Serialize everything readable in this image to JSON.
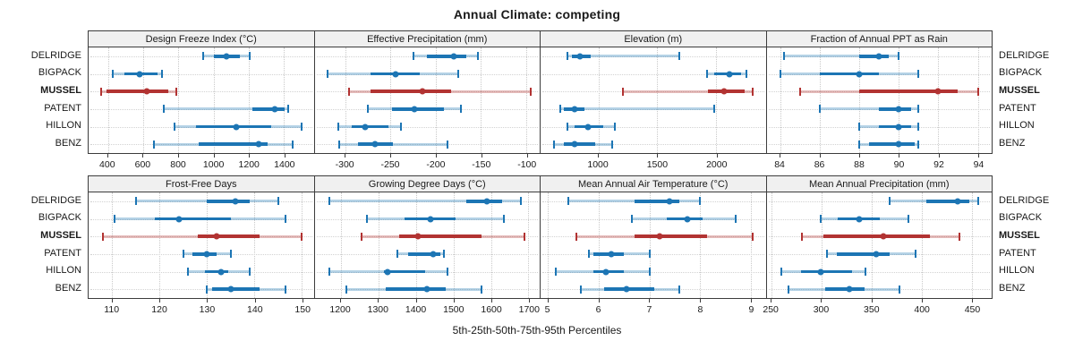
{
  "title": "Annual Climate: competing",
  "caption": "5th-25th-50th-75th-95th Percentiles",
  "sites": [
    "DELRIDGE",
    "BIGPACK",
    "MUSSEL",
    "PATENT",
    "HILLON",
    "BENZ"
  ],
  "highlight_site": "MUSSEL",
  "colors": {
    "series": "#1c75b4",
    "series_light": "rgba(28,117,180,0.33)",
    "highlight": "#b23332",
    "highlight_light": "rgba(178,51,50,0.33)",
    "grid": "#c9c9c9",
    "header_bg": "#f0f0f0",
    "border": "#3c3c3c"
  },
  "chart_data": {
    "type": "dot-whisker percentile trellis",
    "percentiles": [
      "5th",
      "25th",
      "50th",
      "75th",
      "95th"
    ],
    "legend_position": "none",
    "grid": "dotted",
    "panels": [
      {
        "title": "Design Freeze Index (°C)",
        "row": "top",
        "domain": [
          290,
          1570
        ],
        "ticks": [
          400,
          600,
          800,
          1000,
          1200,
          1400
        ],
        "series": [
          {
            "site": "DELRIDGE",
            "values": [
              940,
              1000,
              1075,
              1150,
              1205
            ]
          },
          {
            "site": "BIGPACK",
            "values": [
              425,
              495,
              580,
              680,
              705
            ]
          },
          {
            "site": "MUSSEL",
            "values": [
              360,
              390,
              620,
              745,
              790
            ]
          },
          {
            "site": "PATENT",
            "values": [
              715,
              1220,
              1350,
              1405,
              1425
            ]
          },
          {
            "site": "HILLON",
            "values": [
              780,
              900,
              1130,
              1330,
              1500
            ]
          },
          {
            "site": "BENZ",
            "values": [
              660,
              915,
              1255,
              1310,
              1450
            ]
          }
        ]
      },
      {
        "title": "Effective Precipitation (mm)",
        "row": "top",
        "domain": [
          -334,
          -85
        ],
        "ticks": [
          -300,
          -250,
          -200,
          -150,
          -100
        ],
        "series": [
          {
            "site": "DELRIDGE",
            "values": [
              -225,
              -210,
              -180,
              -166,
              -153
            ]
          },
          {
            "site": "BIGPACK",
            "values": [
              -320,
              -272,
              -244,
              -218,
              -175
            ]
          },
          {
            "site": "MUSSEL",
            "values": [
              -296,
              -272,
              -215,
              -183,
              -95
            ]
          },
          {
            "site": "PATENT",
            "values": [
              -275,
              -248,
              -224,
              -191,
              -172
            ]
          },
          {
            "site": "HILLON",
            "values": [
              -308,
              -293,
              -278,
              -252,
              -238
            ]
          },
          {
            "site": "BENZ",
            "values": [
              -307,
              -286,
              -267,
              -247,
              -187
            ]
          }
        ]
      },
      {
        "title": "Elevation (m)",
        "row": "top",
        "domain": [
          510,
          2420
        ],
        "ticks": [
          1000,
          1500,
          2000
        ],
        "series": [
          {
            "site": "DELRIDGE",
            "values": [
              740,
              775,
              845,
              935,
              1685
            ]
          },
          {
            "site": "BIGPACK",
            "values": [
              1920,
              1985,
              2110,
              2210,
              2260
            ]
          },
          {
            "site": "MUSSEL",
            "values": [
              1205,
              1930,
              2070,
              2245,
              2310
            ]
          },
          {
            "site": "PATENT",
            "values": [
              675,
              710,
              800,
              885,
              1985
            ]
          },
          {
            "site": "HILLON",
            "values": [
              735,
              800,
              910,
              1040,
              1140
            ]
          },
          {
            "site": "BENZ",
            "values": [
              625,
              710,
              800,
              975,
              1115
            ]
          }
        ]
      },
      {
        "title": "Fraction of Annual PPT as Rain",
        "row": "top",
        "domain": [
          83.3,
          94.7
        ],
        "ticks": [
          84,
          86,
          88,
          90,
          92,
          94
        ],
        "series": [
          {
            "site": "DELRIDGE",
            "values": [
              84.2,
              88,
              89,
              89.5,
              90
            ]
          },
          {
            "site": "BIGPACK",
            "values": [
              84,
              86,
              88,
              89,
              91
            ]
          },
          {
            "site": "MUSSEL",
            "values": [
              85,
              88,
              92,
              93,
              94
            ]
          },
          {
            "site": "PATENT",
            "values": [
              86,
              89,
              90,
              90.6,
              91
            ]
          },
          {
            "site": "HILLON",
            "values": [
              88,
              89,
              90,
              90.6,
              91
            ]
          },
          {
            "site": "BENZ",
            "values": [
              88,
              88.5,
              90,
              90.8,
              91
            ]
          }
        ]
      },
      {
        "title": "Frost-Free Days",
        "row": "bottom",
        "domain": [
          105,
          152.5
        ],
        "ticks": [
          110,
          120,
          130,
          140,
          150
        ],
        "series": [
          {
            "site": "DELRIDGE",
            "values": [
              115,
              130,
              136,
              139,
              145
            ]
          },
          {
            "site": "BIGPACK",
            "values": [
              110.5,
              119,
              124,
              135,
              146.5
            ]
          },
          {
            "site": "MUSSEL",
            "values": [
              108,
              128,
              132,
              141,
              150
            ]
          },
          {
            "site": "PATENT",
            "values": [
              125,
              127,
              130,
              132,
              135
            ]
          },
          {
            "site": "HILLON",
            "values": [
              126,
              129.5,
              133,
              134.5,
              139
            ]
          },
          {
            "site": "BENZ",
            "values": [
              130,
              131,
              135,
              141,
              146.5
            ]
          }
        ]
      },
      {
        "title": "Growing Degree Days (°C)",
        "row": "bottom",
        "domain": [
          1130,
          1730
        ],
        "ticks": [
          1200,
          1300,
          1400,
          1500,
          1600,
          1700
        ],
        "series": [
          {
            "site": "DELRIDGE",
            "values": [
              1170,
              1535,
              1590,
              1630,
              1680
            ]
          },
          {
            "site": "BIGPACK",
            "values": [
              1270,
              1370,
              1440,
              1505,
              1635
            ]
          },
          {
            "site": "MUSSEL",
            "values": [
              1255,
              1355,
              1405,
              1575,
              1690
            ]
          },
          {
            "site": "PATENT",
            "values": [
              1350,
              1380,
              1445,
              1465,
              1475
            ]
          },
          {
            "site": "HILLON",
            "values": [
              1170,
              1315,
              1325,
              1425,
              1485
            ]
          },
          {
            "site": "BENZ",
            "values": [
              1215,
              1320,
              1430,
              1480,
              1575
            ]
          }
        ]
      },
      {
        "title": "Mean Annual Air Temperature (°C)",
        "row": "bottom",
        "domain": [
          4.85,
          9.3
        ],
        "ticks": [
          5,
          6,
          7,
          8,
          9
        ],
        "series": [
          {
            "site": "DELRIDGE",
            "values": [
              5.4,
              6.7,
              7.4,
              7.6,
              8.0
            ]
          },
          {
            "site": "BIGPACK",
            "values": [
              6.65,
              7.35,
              7.75,
              8.05,
              8.7
            ]
          },
          {
            "site": "MUSSEL",
            "values": [
              5.55,
              6.7,
              7.2,
              8.15,
              9.05
            ]
          },
          {
            "site": "PATENT",
            "values": [
              5.8,
              5.9,
              6.25,
              6.5,
              7.0
            ]
          },
          {
            "site": "HILLON",
            "values": [
              5.15,
              5.9,
              6.15,
              6.5,
              7.0
            ]
          },
          {
            "site": "BENZ",
            "values": [
              5.65,
              6.1,
              6.55,
              7.1,
              7.6
            ]
          }
        ]
      },
      {
        "title": "Mean Annual Precipitation (mm)",
        "row": "bottom",
        "domain": [
          245,
          470
        ],
        "ticks": [
          250,
          300,
          350,
          400,
          450
        ],
        "series": [
          {
            "site": "DELRIDGE",
            "values": [
              368,
              405,
              436,
              448,
              457
            ]
          },
          {
            "site": "BIGPACK",
            "values": [
              299,
              316,
              338,
              358,
              387
            ]
          },
          {
            "site": "MUSSEL",
            "values": [
              280,
              302,
              362,
              408,
              438
            ]
          },
          {
            "site": "PATENT",
            "values": [
              305,
              315,
              355,
              368,
              394
            ]
          },
          {
            "site": "HILLON",
            "values": [
              260,
              279,
              299,
              330,
              344
            ]
          },
          {
            "site": "BENZ",
            "values": [
              267,
              304,
              328,
              343,
              378
            ]
          }
        ]
      }
    ]
  }
}
